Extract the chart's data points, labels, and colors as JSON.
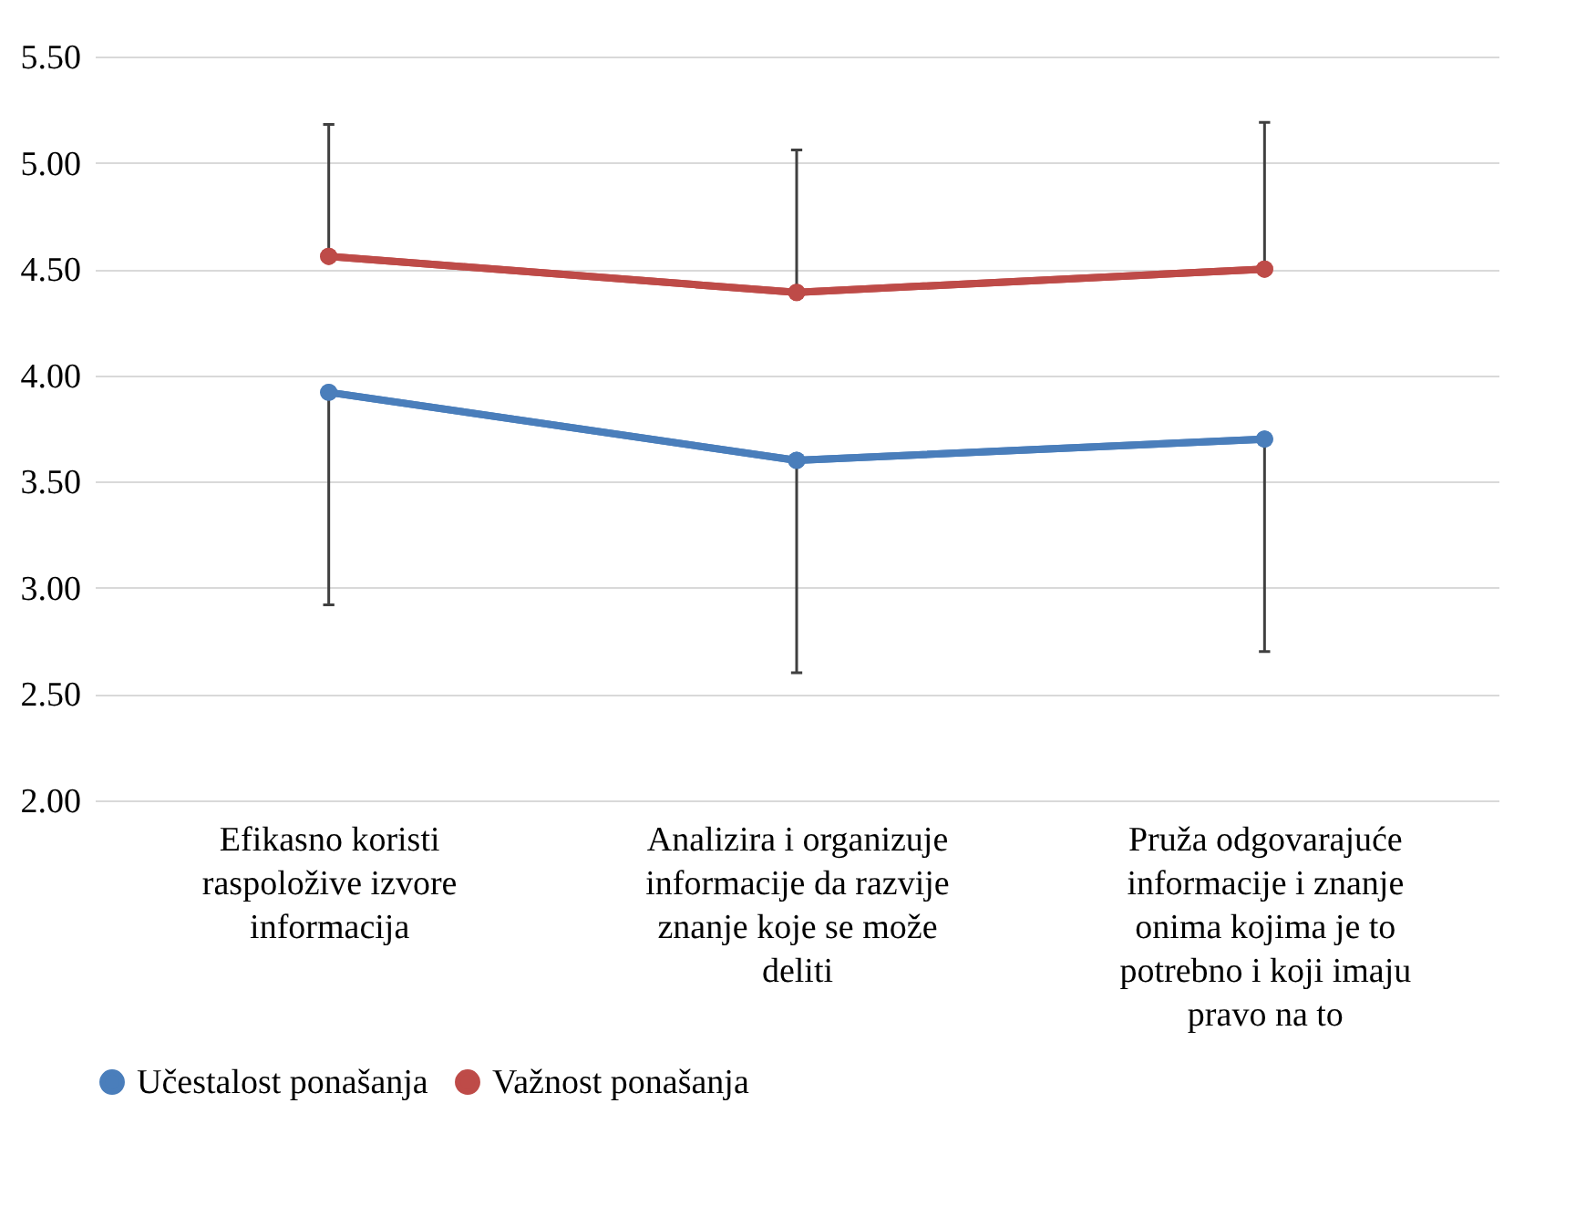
{
  "chart_data": {
    "type": "line",
    "categories": [
      "Efikasno koristi raspoložive izvore informacija",
      "Analizira i organizuje informacije da razvije znanje koje se može deliti",
      "Pruža odgovarajuće informacije i znanje onima kojima je to potrebno i koji imaju pravo na to"
    ],
    "series": [
      {
        "name": "Učestalost ponašanja",
        "color": "#4a7ebb",
        "values": [
          3.92,
          3.6,
          3.7
        ],
        "errors": [
          [
            2.92,
            3.92
          ],
          [
            2.6,
            3.6
          ],
          [
            2.7,
            3.7
          ]
        ]
      },
      {
        "name": "Važnost ponašanja",
        "color": "#be4b48",
        "values": [
          4.56,
          4.39,
          4.5
        ],
        "errors": [
          [
            4.56,
            5.18
          ],
          [
            4.39,
            5.06
          ],
          [
            4.5,
            5.19
          ]
        ]
      }
    ],
    "ylim": [
      2.0,
      5.5
    ],
    "yticks": [
      {
        "value": 2.0,
        "label": "2.00"
      },
      {
        "value": 2.5,
        "label": "2.50"
      },
      {
        "value": 3.0,
        "label": "3.00"
      },
      {
        "value": 3.5,
        "label": "3.50"
      },
      {
        "value": 4.0,
        "label": "4.00"
      },
      {
        "value": 4.5,
        "label": "4.50"
      },
      {
        "value": 5.0,
        "label": "5.00"
      },
      {
        "value": 5.5,
        "label": "5.50"
      }
    ],
    "grid": "y",
    "legend": "bottom",
    "marker": "circle",
    "line_style": "solid"
  }
}
